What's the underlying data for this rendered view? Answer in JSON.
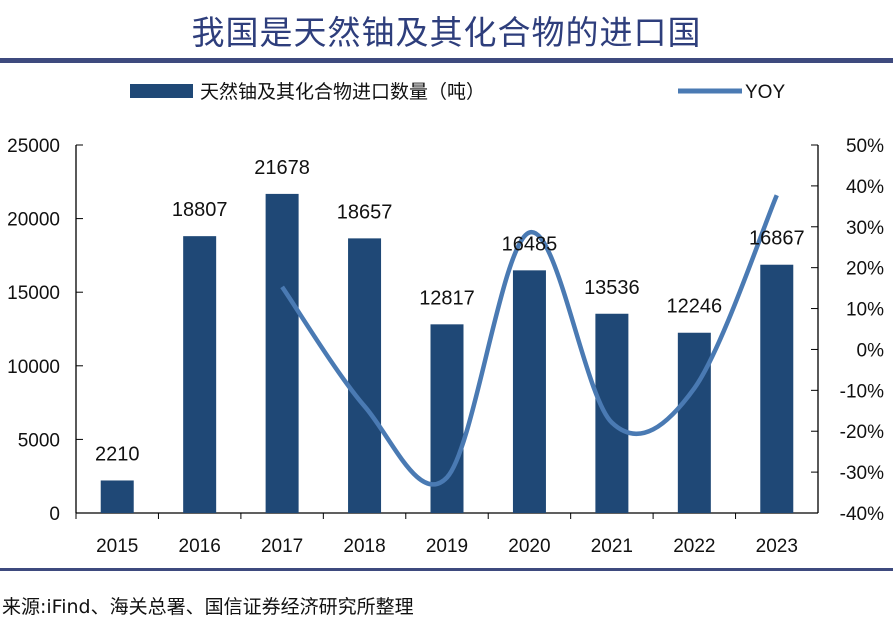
{
  "title": "我国是天然铀及其化合物的进口国",
  "source": "来源:iFind、海关总署、国信证券经济研究所整理",
  "colors": {
    "bar": "#1f4876",
    "line": "#4a7ab3",
    "title": "#2e3e7c",
    "rule": "#3e4a7e"
  },
  "chart_data": {
    "type": "bar+line",
    "categories": [
      "2015",
      "2016",
      "2017",
      "2018",
      "2019",
      "2020",
      "2021",
      "2022",
      "2023"
    ],
    "series": [
      {
        "name": "天然铀及其化合物进口数量（吨）",
        "type": "bar",
        "axis": "left",
        "values": [
          2210,
          18807,
          21678,
          18657,
          12817,
          16485,
          13536,
          12246,
          16867
        ]
      },
      {
        "name": "YOY",
        "type": "line",
        "axis": "right",
        "values": [
          null,
          null,
          15.3,
          -13.9,
          -31.3,
          28.6,
          -17.9,
          -9.5,
          37.7
        ]
      }
    ],
    "left_axis": {
      "min": 0,
      "max": 25000,
      "ticks": [
        "0",
        "5000",
        "10000",
        "15000",
        "20000",
        "25000"
      ]
    },
    "right_axis": {
      "min": -40,
      "max": 50,
      "ticks": [
        "-40%",
        "-30%",
        "-20%",
        "-10%",
        "0%",
        "10%",
        "20%",
        "30%",
        "40%",
        "50%"
      ]
    },
    "legend_position": "top",
    "grid": false,
    "data_labels": true
  }
}
